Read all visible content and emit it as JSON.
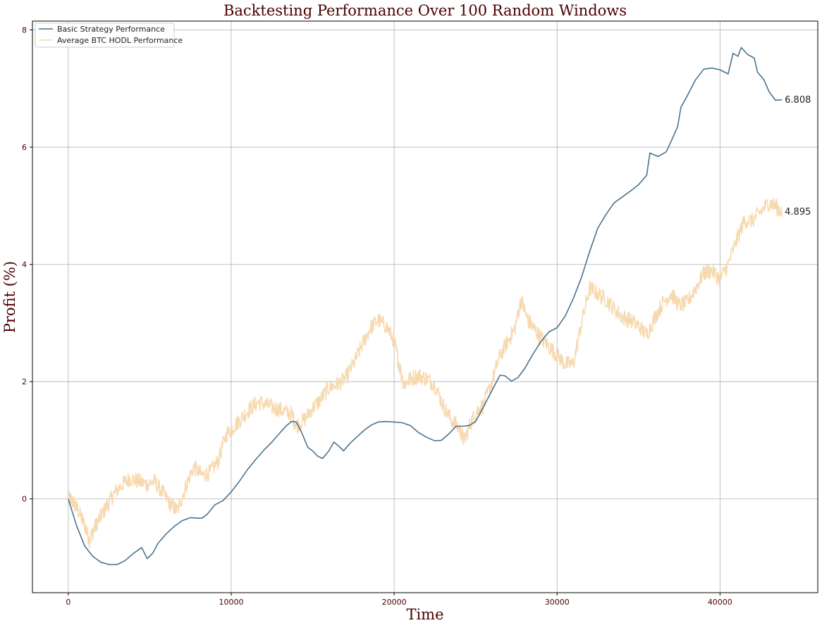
{
  "chart_data": {
    "type": "line",
    "title": "Backtesting Performance Over 100 Random Windows",
    "xlabel": "Time",
    "ylabel": "Profit (%)",
    "xlim": [
      -2200,
      46000
    ],
    "ylim": [
      -1.6,
      8.15
    ],
    "xticks": [
      0,
      10000,
      20000,
      30000,
      40000
    ],
    "xtick_labels": [
      "0",
      "10000",
      "20000",
      "30000",
      "40000"
    ],
    "yticks": [
      0,
      2,
      4,
      6,
      8
    ],
    "ytick_labels": [
      "0",
      "2",
      "4",
      "6",
      "8"
    ],
    "grid": true,
    "legend_position": "top-left",
    "colors": {
      "strategy": "#4a7391",
      "hodl": "#f7d9b0",
      "title": "#4a0000",
      "grid": "#b0b0b0"
    },
    "series": [
      {
        "name": "Basic Strategy Performance",
        "color": "#4a7391",
        "noisy": false,
        "end_label": "6.808",
        "points": [
          [
            0,
            0.0
          ],
          [
            500,
            -0.45
          ],
          [
            1000,
            -0.8
          ],
          [
            1500,
            -0.98
          ],
          [
            2000,
            -1.08
          ],
          [
            2500,
            -1.12
          ],
          [
            3000,
            -1.12
          ],
          [
            3500,
            -1.05
          ],
          [
            4000,
            -0.93
          ],
          [
            4500,
            -0.83
          ],
          [
            4850,
            -1.02
          ],
          [
            5200,
            -0.92
          ],
          [
            5500,
            -0.76
          ],
          [
            6000,
            -0.6
          ],
          [
            6500,
            -0.47
          ],
          [
            7000,
            -0.37
          ],
          [
            7500,
            -0.32
          ],
          [
            8000,
            -0.33
          ],
          [
            8200,
            -0.33
          ],
          [
            8500,
            -0.27
          ],
          [
            9000,
            -0.1
          ],
          [
            9500,
            -0.03
          ],
          [
            10000,
            0.12
          ],
          [
            10500,
            0.3
          ],
          [
            11000,
            0.5
          ],
          [
            11500,
            0.67
          ],
          [
            12000,
            0.83
          ],
          [
            12500,
            0.97
          ],
          [
            13000,
            1.13
          ],
          [
            13400,
            1.25
          ],
          [
            13700,
            1.32
          ],
          [
            14000,
            1.31
          ],
          [
            14300,
            1.15
          ],
          [
            14700,
            0.88
          ],
          [
            15000,
            0.82
          ],
          [
            15300,
            0.73
          ],
          [
            15600,
            0.69
          ],
          [
            16000,
            0.82
          ],
          [
            16300,
            0.97
          ],
          [
            16600,
            0.9
          ],
          [
            16900,
            0.82
          ],
          [
            17300,
            0.95
          ],
          [
            17800,
            1.08
          ],
          [
            18200,
            1.18
          ],
          [
            18600,
            1.26
          ],
          [
            19000,
            1.31
          ],
          [
            19500,
            1.32
          ],
          [
            20000,
            1.31
          ],
          [
            20500,
            1.3
          ],
          [
            21000,
            1.25
          ],
          [
            21500,
            1.13
          ],
          [
            22000,
            1.05
          ],
          [
            22500,
            0.99
          ],
          [
            22900,
            1.0
          ],
          [
            23400,
            1.12
          ],
          [
            23800,
            1.24
          ],
          [
            24200,
            1.24
          ],
          [
            24600,
            1.25
          ],
          [
            25000,
            1.32
          ],
          [
            25500,
            1.58
          ],
          [
            26000,
            1.85
          ],
          [
            26500,
            2.11
          ],
          [
            26800,
            2.1
          ],
          [
            27200,
            2.01
          ],
          [
            27600,
            2.07
          ],
          [
            28000,
            2.22
          ],
          [
            28500,
            2.46
          ],
          [
            29000,
            2.68
          ],
          [
            29500,
            2.85
          ],
          [
            30000,
            2.92
          ],
          [
            30500,
            3.12
          ],
          [
            31000,
            3.42
          ],
          [
            31500,
            3.78
          ],
          [
            32000,
            4.22
          ],
          [
            32500,
            4.62
          ],
          [
            33000,
            4.85
          ],
          [
            33500,
            5.05
          ],
          [
            34000,
            5.15
          ],
          [
            34500,
            5.25
          ],
          [
            35000,
            5.36
          ],
          [
            35500,
            5.52
          ],
          [
            35700,
            5.9
          ],
          [
            36200,
            5.84
          ],
          [
            36700,
            5.92
          ],
          [
            37000,
            6.1
          ],
          [
            37400,
            6.35
          ],
          [
            37600,
            6.68
          ],
          [
            38000,
            6.88
          ],
          [
            38500,
            7.15
          ],
          [
            39000,
            7.33
          ],
          [
            39500,
            7.35
          ],
          [
            40000,
            7.32
          ],
          [
            40500,
            7.25
          ],
          [
            40800,
            7.6
          ],
          [
            41100,
            7.55
          ],
          [
            41300,
            7.7
          ],
          [
            41700,
            7.58
          ],
          [
            42100,
            7.52
          ],
          [
            42300,
            7.28
          ],
          [
            42700,
            7.15
          ],
          [
            43000,
            6.95
          ],
          [
            43400,
            6.8
          ],
          [
            43800,
            6.808
          ]
        ]
      },
      {
        "name": "Average BTC HODL Performance",
        "color": "#f7d9b0",
        "noisy": true,
        "end_label": "4.895",
        "points": [
          [
            0,
            0.0
          ],
          [
            300,
            -0.05
          ],
          [
            600,
            -0.2
          ],
          [
            1000,
            -0.45
          ],
          [
            1300,
            -0.7
          ],
          [
            1600,
            -0.5
          ],
          [
            2000,
            -0.3
          ],
          [
            2400,
            -0.1
          ],
          [
            2800,
            0.08
          ],
          [
            3300,
            0.25
          ],
          [
            3800,
            0.35
          ],
          [
            4300,
            0.3
          ],
          [
            4800,
            0.25
          ],
          [
            5300,
            0.3
          ],
          [
            5800,
            0.1
          ],
          [
            6300,
            -0.1
          ],
          [
            6700,
            -0.2
          ],
          [
            7200,
            0.2
          ],
          [
            7700,
            0.55
          ],
          [
            8200,
            0.4
          ],
          [
            8700,
            0.45
          ],
          [
            9200,
            0.65
          ],
          [
            9700,
            1.1
          ],
          [
            10200,
            1.25
          ],
          [
            10700,
            1.4
          ],
          [
            11200,
            1.55
          ],
          [
            11700,
            1.65
          ],
          [
            12200,
            1.6
          ],
          [
            12700,
            1.55
          ],
          [
            13200,
            1.5
          ],
          [
            13700,
            1.45
          ],
          [
            14000,
            1.25
          ],
          [
            14500,
            1.35
          ],
          [
            15000,
            1.55
          ],
          [
            15500,
            1.7
          ],
          [
            16000,
            1.9
          ],
          [
            16500,
            1.95
          ],
          [
            17000,
            2.05
          ],
          [
            17500,
            2.3
          ],
          [
            18000,
            2.6
          ],
          [
            18500,
            2.9
          ],
          [
            19000,
            3.05
          ],
          [
            19500,
            2.95
          ],
          [
            20000,
            2.7
          ],
          [
            20300,
            2.3
          ],
          [
            20600,
            1.95
          ],
          [
            21000,
            2.05
          ],
          [
            21500,
            2.1
          ],
          [
            22000,
            2.05
          ],
          [
            22500,
            1.95
          ],
          [
            23000,
            1.6
          ],
          [
            23500,
            1.35
          ],
          [
            24000,
            1.2
          ],
          [
            24300,
            1.0
          ],
          [
            24700,
            1.3
          ],
          [
            25100,
            1.5
          ],
          [
            25500,
            1.6
          ],
          [
            26000,
            2.0
          ],
          [
            26500,
            2.45
          ],
          [
            27000,
            2.7
          ],
          [
            27400,
            2.9
          ],
          [
            27800,
            3.4
          ],
          [
            28200,
            3.05
          ],
          [
            28600,
            2.9
          ],
          [
            29000,
            2.75
          ],
          [
            29500,
            2.6
          ],
          [
            30000,
            2.45
          ],
          [
            30500,
            2.3
          ],
          [
            31000,
            2.3
          ],
          [
            31500,
            3.0
          ],
          [
            32000,
            3.6
          ],
          [
            32500,
            3.5
          ],
          [
            33000,
            3.4
          ],
          [
            33500,
            3.25
          ],
          [
            34000,
            3.1
          ],
          [
            34500,
            3.05
          ],
          [
            35000,
            2.95
          ],
          [
            35500,
            2.8
          ],
          [
            36000,
            3.1
          ],
          [
            36500,
            3.35
          ],
          [
            37000,
            3.5
          ],
          [
            37500,
            3.3
          ],
          [
            38000,
            3.35
          ],
          [
            38500,
            3.6
          ],
          [
            39000,
            3.85
          ],
          [
            39500,
            3.9
          ],
          [
            40000,
            3.75
          ],
          [
            40500,
            4.0
          ],
          [
            41000,
            4.4
          ],
          [
            41500,
            4.75
          ],
          [
            42000,
            4.75
          ],
          [
            42500,
            4.9
          ],
          [
            43000,
            5.05
          ],
          [
            43400,
            5.0
          ],
          [
            43800,
            4.895
          ]
        ]
      }
    ]
  }
}
